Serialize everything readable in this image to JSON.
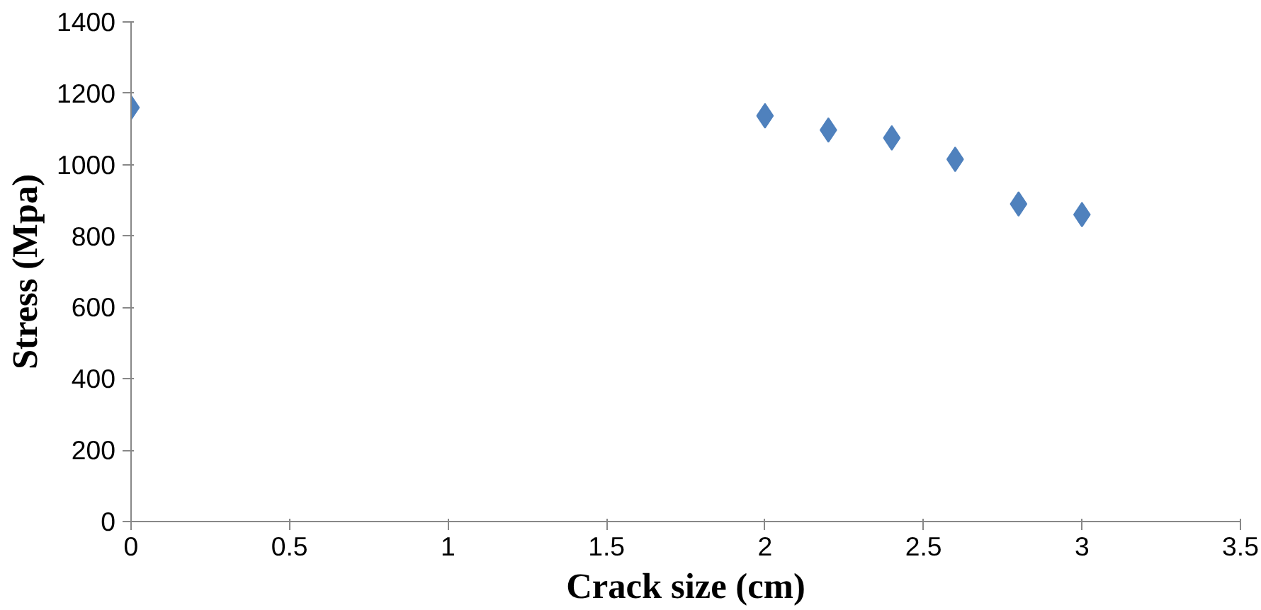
{
  "chart_data": {
    "type": "scatter",
    "xlabel": "Crack size (cm)",
    "ylabel": "Stress (Mpa)",
    "x": [
      0,
      2,
      2.2,
      2.4,
      2.6,
      2.8,
      3
    ],
    "series": [
      {
        "color": "#4f81bd",
        "values": [
          1160,
          1137,
          1097,
          1075,
          1015,
          890,
          860
        ]
      }
    ],
    "xlim": [
      0,
      3.5
    ],
    "xticks": [
      0,
      0.5,
      1,
      1.5,
      2,
      2.5,
      3,
      3.5
    ],
    "ylim": [
      0,
      1400
    ],
    "yticks": [
      0,
      200,
      400,
      600,
      800,
      1000,
      1200,
      1400
    ],
    "marker": "diamond",
    "grid": false
  }
}
